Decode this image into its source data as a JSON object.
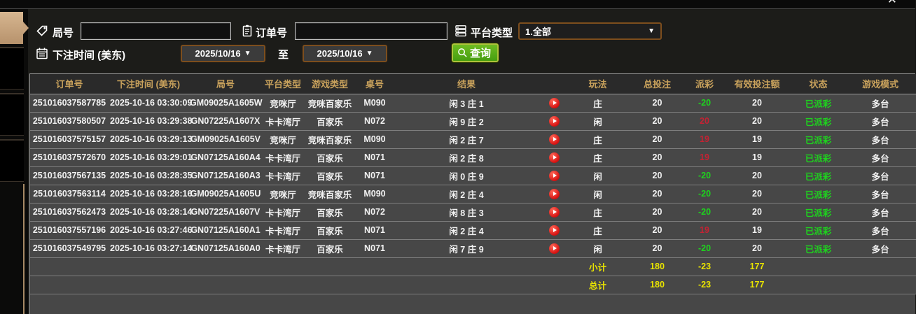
{
  "window": {
    "close_glyph": "✕"
  },
  "filters": {
    "game_no_label": "局号",
    "order_no_label": "订单号",
    "order_no_value": "",
    "game_no_value": "",
    "platform_label": "平台类型",
    "platform_value": "1.全部",
    "bet_time_label": "下注时间 (美东)",
    "date_from": "2025/10/16",
    "to_label": "至",
    "date_to": "2025/10/16",
    "query_label": "查询",
    "dropdown_arrow": "▼"
  },
  "table": {
    "headers": [
      "订单号",
      "下注时间 (美东)",
      "局号",
      "平台类型",
      "游戏类型",
      "桌号",
      "结果",
      "",
      "玩法",
      "总投注",
      "派彩",
      "有效投注额",
      "状态",
      "游戏模式"
    ],
    "rows": [
      {
        "order": "251016037587785",
        "time": "2025-10-16 03:30:09",
        "game_no": "GM09025A1605W",
        "platform": "竞咪厅",
        "game_type": "竞咪百家乐",
        "table_no": "M090",
        "result": "闲 3 庄 1",
        "play": "庄",
        "total_bet": "20",
        "payout": "-20",
        "payout_color": "green",
        "valid_bet": "20",
        "status": "已派彩",
        "mode": "多台"
      },
      {
        "order": "251016037580507",
        "time": "2025-10-16 03:29:38",
        "game_no": "GN07225A1607X",
        "platform": "卡卡湾厅",
        "game_type": "百家乐",
        "table_no": "N072",
        "result": "闲 9 庄 2",
        "play": "闲",
        "total_bet": "20",
        "payout": "20",
        "payout_color": "red",
        "valid_bet": "20",
        "status": "已派彩",
        "mode": "多台"
      },
      {
        "order": "251016037575157",
        "time": "2025-10-16 03:29:13",
        "game_no": "GM09025A1605V",
        "platform": "竞咪厅",
        "game_type": "竞咪百家乐",
        "table_no": "M090",
        "result": "闲 2 庄 7",
        "play": "庄",
        "total_bet": "20",
        "payout": "19",
        "payout_color": "red",
        "valid_bet": "19",
        "status": "已派彩",
        "mode": "多台"
      },
      {
        "order": "251016037572670",
        "time": "2025-10-16 03:29:01",
        "game_no": "GN07125A160A4",
        "platform": "卡卡湾厅",
        "game_type": "百家乐",
        "table_no": "N071",
        "result": "闲 2 庄 8",
        "play": "庄",
        "total_bet": "20",
        "payout": "19",
        "payout_color": "red",
        "valid_bet": "19",
        "status": "已派彩",
        "mode": "多台"
      },
      {
        "order": "251016037567135",
        "time": "2025-10-16 03:28:35",
        "game_no": "GN07125A160A3",
        "platform": "卡卡湾厅",
        "game_type": "百家乐",
        "table_no": "N071",
        "result": "闲 0 庄 9",
        "play": "闲",
        "total_bet": "20",
        "payout": "-20",
        "payout_color": "green",
        "valid_bet": "20",
        "status": "已派彩",
        "mode": "多台"
      },
      {
        "order": "251016037563114",
        "time": "2025-10-16 03:28:16",
        "game_no": "GM09025A1605U",
        "platform": "竞咪厅",
        "game_type": "竞咪百家乐",
        "table_no": "M090",
        "result": "闲 2 庄 4",
        "play": "闲",
        "total_bet": "20",
        "payout": "-20",
        "payout_color": "green",
        "valid_bet": "20",
        "status": "已派彩",
        "mode": "多台"
      },
      {
        "order": "251016037562473",
        "time": "2025-10-16 03:28:14",
        "game_no": "GN07225A1607V",
        "platform": "卡卡湾厅",
        "game_type": "百家乐",
        "table_no": "N072",
        "result": "闲 8 庄 3",
        "play": "庄",
        "total_bet": "20",
        "payout": "-20",
        "payout_color": "green",
        "valid_bet": "20",
        "status": "已派彩",
        "mode": "多台"
      },
      {
        "order": "251016037557196",
        "time": "2025-10-16 03:27:46",
        "game_no": "GN07125A160A1",
        "platform": "卡卡湾厅",
        "game_type": "百家乐",
        "table_no": "N071",
        "result": "闲 2 庄 4",
        "play": "庄",
        "total_bet": "20",
        "payout": "19",
        "payout_color": "red",
        "valid_bet": "19",
        "status": "已派彩",
        "mode": "多台"
      },
      {
        "order": "251016037549795",
        "time": "2025-10-16 03:27:14",
        "game_no": "GN07125A160A0",
        "platform": "卡卡湾厅",
        "game_type": "百家乐",
        "table_no": "N071",
        "result": "闲 7 庄 9",
        "play": "闲",
        "total_bet": "20",
        "payout": "-20",
        "payout_color": "green",
        "valid_bet": "20",
        "status": "已派彩",
        "mode": "多台"
      }
    ],
    "subtotal": {
      "label": "小计",
      "total_bet": "180",
      "payout": "-23",
      "valid_bet": "177"
    },
    "total": {
      "label": "总计",
      "total_bet": "180",
      "payout": "-23",
      "valid_bet": "177"
    }
  }
}
